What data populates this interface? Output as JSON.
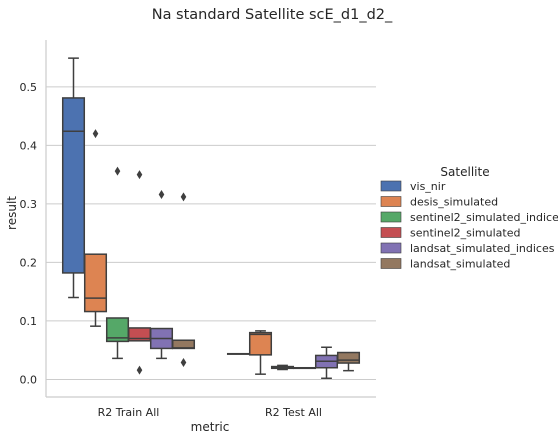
{
  "chart_data": {
    "type": "box",
    "title": "Na standard Satellite scE_d1_d2_",
    "xlabel": "metric",
    "ylabel": "result",
    "categories": [
      "R2 Train All",
      "R2 Test All"
    ],
    "ylim": [
      -0.03,
      0.58
    ],
    "yticks": [
      0.0,
      0.1,
      0.2,
      0.3,
      0.4,
      0.5
    ],
    "ytick_labels": [
      "0.0",
      "0.1",
      "0.2",
      "0.3",
      "0.4",
      "0.5"
    ],
    "grid": "horizontal",
    "legend": {
      "title": "Satellite",
      "placement": "right"
    },
    "series": [
      {
        "name": "vis_nir",
        "color": "#4c72b0",
        "boxes": [
          {
            "category": "R2 Train All",
            "whislo": 0.14,
            "q1": 0.182,
            "med": 0.424,
            "q3": 0.481,
            "whishi": 0.549,
            "fliers": []
          },
          {
            "category": "R2 Test All",
            "whislo": 0.044,
            "q1": 0.044,
            "med": 0.044,
            "q3": 0.044,
            "whishi": 0.044,
            "fliers": []
          }
        ]
      },
      {
        "name": "desis_simulated",
        "color": "#dd8452",
        "boxes": [
          {
            "category": "R2 Train All",
            "whislo": 0.091,
            "q1": 0.116,
            "med": 0.139,
            "q3": 0.214,
            "whishi": 0.214,
            "fliers": [
              0.42
            ]
          },
          {
            "category": "R2 Test All",
            "whislo": 0.009,
            "q1": 0.042,
            "med": 0.077,
            "q3": 0.08,
            "whishi": 0.083,
            "fliers": []
          }
        ]
      },
      {
        "name": "sentinel2_simulated_indices",
        "color": "#55a868",
        "boxes": [
          {
            "category": "R2 Train All",
            "whislo": 0.036,
            "q1": 0.065,
            "med": 0.071,
            "q3": 0.105,
            "whishi": 0.105,
            "fliers": [
              0.356
            ]
          },
          {
            "category": "R2 Test All",
            "whislo": 0.017,
            "q1": 0.019,
            "med": 0.021,
            "q3": 0.022,
            "whishi": 0.024,
            "fliers": []
          }
        ]
      },
      {
        "name": "sentinel2_simulated",
        "color": "#c44e52",
        "boxes": [
          {
            "category": "R2 Train All",
            "whislo": 0.066,
            "q1": 0.066,
            "med": 0.07,
            "q3": 0.088,
            "whishi": 0.088,
            "fliers": [
              0.35,
              0.016
            ]
          },
          {
            "category": "R2 Test All",
            "whislo": 0.019,
            "q1": 0.019,
            "med": 0.02,
            "q3": 0.02,
            "whishi": 0.02,
            "fliers": []
          }
        ]
      },
      {
        "name": "landsat_simulated_indices",
        "color": "#8172b3",
        "boxes": [
          {
            "category": "R2 Train All",
            "whislo": 0.036,
            "q1": 0.053,
            "med": 0.07,
            "q3": 0.087,
            "whishi": 0.087,
            "fliers": [
              0.316
            ]
          },
          {
            "category": "R2 Test All",
            "whislo": 0.002,
            "q1": 0.02,
            "med": 0.031,
            "q3": 0.041,
            "whishi": 0.055,
            "fliers": []
          }
        ]
      },
      {
        "name": "landsat_simulated",
        "color": "#937860",
        "boxes": [
          {
            "category": "R2 Train All",
            "whislo": 0.053,
            "q1": 0.053,
            "med": 0.054,
            "q3": 0.067,
            "whishi": 0.067,
            "fliers": [
              0.312,
              0.029
            ]
          },
          {
            "category": "R2 Test All",
            "whislo": 0.015,
            "q1": 0.028,
            "med": 0.033,
            "q3": 0.046,
            "whishi": 0.046,
            "fliers": []
          }
        ]
      }
    ]
  }
}
